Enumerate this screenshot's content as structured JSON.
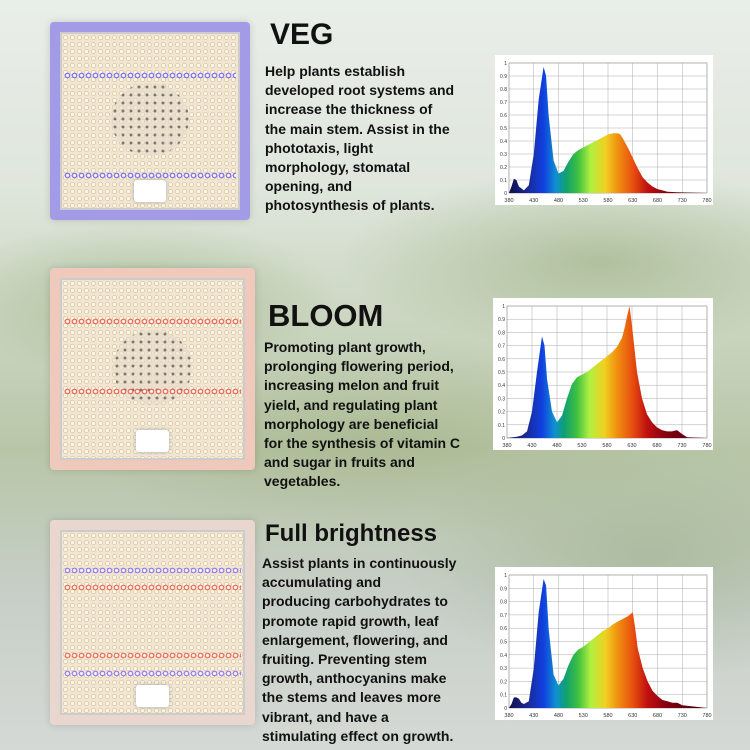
{
  "sections": [
    {
      "title": "VEG",
      "description": [
        "Help plants establish",
        "developed root systems and",
        "increase the thickness of",
        "the main stem. Assist in the",
        "phototaxis, light",
        "morphology, stomatal",
        "opening, and",
        "photosynthesis of plants."
      ],
      "lamp_glow": "#a49be6",
      "stripe_colors": [
        "#5a4cf0",
        "#5a4cf0"
      ]
    },
    {
      "title": "BLOOM",
      "description": [
        "Promoting plant growth,",
        "prolonging flowering period,",
        "increasing melon and fruit",
        "yield, and regulating plant",
        "morphology are beneficial",
        "for the synthesis of vitamin C",
        "and sugar in fruits and",
        "vegetables."
      ],
      "lamp_glow": "#f0c9bd",
      "stripe_colors": [
        "#e8402a",
        "#e8402a"
      ]
    },
    {
      "title": "Full brightness",
      "description": [
        "Assist plants in continuously",
        "accumulating and",
        "producing carbohydrates to",
        "promote rapid growth, leaf",
        "enlargement, flowering, and",
        "fruiting. Preventing stem",
        "growth, anthocyanins make",
        "the stems and leaves more",
        "vibrant, and have a",
        "stimulating effect on growth."
      ],
      "lamp_glow": "#e9d7cf",
      "stripe_colors": [
        "#7a5cf0",
        "#e84a30"
      ]
    }
  ],
  "chart_data": [
    {
      "type": "area",
      "xlim": [
        380,
        780
      ],
      "ylim": [
        0,
        1
      ],
      "grid": true,
      "x_ticks": [
        "380",
        "430",
        "480",
        "530",
        "580",
        "630",
        "680",
        "730",
        "780"
      ],
      "y_ticks": [
        "0",
        "0.1",
        "0.2",
        "0.3",
        "0.4",
        "0.5",
        "0.6",
        "0.7",
        "0.8",
        "0.9",
        "1"
      ],
      "x": [
        380,
        385,
        390,
        395,
        400,
        410,
        420,
        430,
        440,
        450,
        455,
        460,
        470,
        480,
        490,
        500,
        510,
        520,
        530,
        540,
        550,
        560,
        570,
        580,
        590,
        600,
        605,
        610,
        620,
        630,
        640,
        650,
        660,
        670,
        680,
        690,
        700,
        720,
        780
      ],
      "y": [
        0,
        0.05,
        0.11,
        0.1,
        0.05,
        0.02,
        0.06,
        0.3,
        0.72,
        0.97,
        0.9,
        0.6,
        0.25,
        0.15,
        0.17,
        0.24,
        0.3,
        0.33,
        0.35,
        0.37,
        0.39,
        0.41,
        0.43,
        0.45,
        0.46,
        0.46,
        0.45,
        0.42,
        0.35,
        0.27,
        0.19,
        0.12,
        0.08,
        0.05,
        0.03,
        0.02,
        0.01,
        0.005,
        0
      ]
    },
    {
      "type": "area",
      "xlim": [
        380,
        780
      ],
      "ylim": [
        0,
        1
      ],
      "grid": true,
      "x_ticks": [
        "380",
        "430",
        "480",
        "530",
        "580",
        "630",
        "680",
        "730",
        "780"
      ],
      "y_ticks": [
        "0",
        "0.1",
        "0.2",
        "0.3",
        "0.4",
        "0.5",
        "0.6",
        "0.7",
        "0.8",
        "0.9",
        "1"
      ],
      "x": [
        380,
        400,
        410,
        420,
        430,
        440,
        450,
        455,
        460,
        470,
        480,
        490,
        500,
        510,
        520,
        530,
        540,
        550,
        560,
        570,
        580,
        590,
        600,
        610,
        615,
        620,
        625,
        630,
        640,
        650,
        660,
        670,
        680,
        690,
        700,
        710,
        720,
        730,
        740,
        780
      ],
      "y": [
        0,
        0.01,
        0.02,
        0.05,
        0.2,
        0.5,
        0.77,
        0.7,
        0.45,
        0.2,
        0.12,
        0.17,
        0.3,
        0.41,
        0.46,
        0.48,
        0.5,
        0.53,
        0.56,
        0.59,
        0.62,
        0.65,
        0.69,
        0.76,
        0.83,
        0.92,
        1.0,
        0.85,
        0.5,
        0.3,
        0.18,
        0.12,
        0.08,
        0.06,
        0.05,
        0.05,
        0.06,
        0.03,
        0.005,
        0
      ]
    },
    {
      "type": "area",
      "xlim": [
        380,
        780
      ],
      "ylim": [
        0,
        1
      ],
      "grid": true,
      "x_ticks": [
        "380",
        "430",
        "480",
        "530",
        "580",
        "630",
        "680",
        "730",
        "780"
      ],
      "y_ticks": [
        "0",
        "0.1",
        "0.2",
        "0.3",
        "0.4",
        "0.5",
        "0.6",
        "0.7",
        "0.8",
        "0.9",
        "1"
      ],
      "x": [
        380,
        385,
        390,
        395,
        400,
        405,
        410,
        420,
        430,
        440,
        450,
        455,
        460,
        470,
        480,
        490,
        500,
        510,
        520,
        530,
        540,
        550,
        560,
        570,
        580,
        590,
        600,
        610,
        620,
        630,
        635,
        640,
        650,
        660,
        670,
        680,
        690,
        700,
        710,
        720,
        730,
        780
      ],
      "y": [
        0,
        0.03,
        0.08,
        0.08,
        0.07,
        0.04,
        0.03,
        0.05,
        0.3,
        0.72,
        0.97,
        0.92,
        0.6,
        0.25,
        0.17,
        0.22,
        0.32,
        0.4,
        0.44,
        0.46,
        0.49,
        0.52,
        0.55,
        0.58,
        0.6,
        0.63,
        0.65,
        0.67,
        0.69,
        0.72,
        0.6,
        0.45,
        0.3,
        0.2,
        0.13,
        0.09,
        0.06,
        0.05,
        0.04,
        0.04,
        0.02,
        0
      ]
    }
  ]
}
